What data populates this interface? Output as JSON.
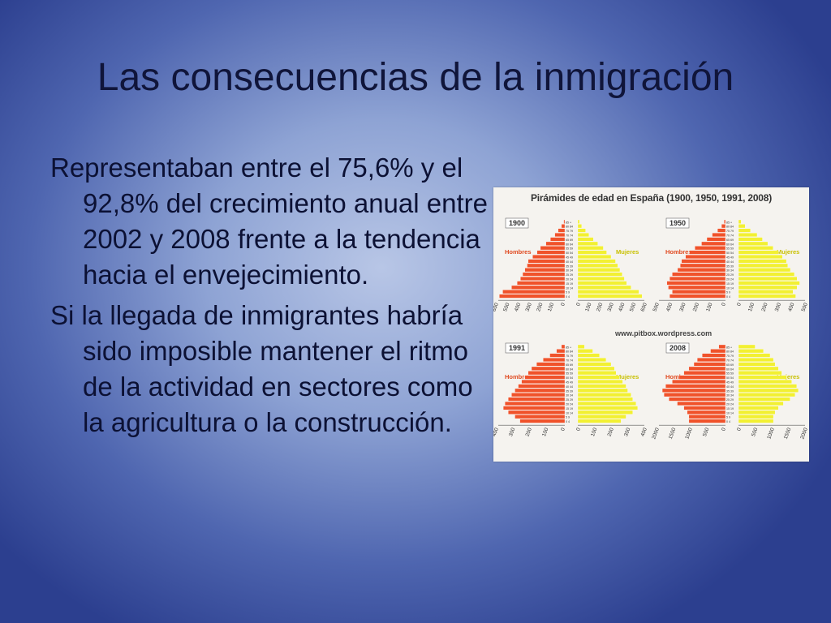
{
  "slide": {
    "title": "Las consecuencias de la inmigración",
    "paragraphs": [
      "Representaban entre el 75,6% y el 92,8% del crecimiento anual entre 2002 y 2008 frente a la tendencia hacia el envejecimiento.",
      "Si la llegada de inmigrantes habría sido imposible mantener el ritmo de la actividad en sectores como la agricultura o la construcción."
    ]
  },
  "figure": {
    "title": "Pirámides de edad en España (1900, 1950, 1991, 2008)",
    "source": "www.pitbox.wordpress.com",
    "colors": {
      "men": "#f0522a",
      "women": "#f2f032"
    },
    "age_labels": [
      "85 +",
      "80 84",
      "75 79",
      "70 74",
      "65 69",
      "60 64",
      "55 59",
      "50 54",
      "45 49",
      "40 44",
      "35 39",
      "30 34",
      "25 29",
      "20 24",
      "15 19",
      "10 14",
      "5 9",
      "0 4"
    ],
    "pyramids": [
      {
        "year": "1900",
        "men_label": "Hombres",
        "women_label": "Mujeres",
        "axis_left": [
          "600",
          "500",
          "400",
          "300",
          "200",
          "100",
          "0"
        ],
        "axis_right": [
          "0",
          "100",
          "200",
          "300",
          "400",
          "500",
          "600"
        ]
      },
      {
        "year": "1950",
        "men_label": "Hombres",
        "women_label": "Mujeres",
        "axis_left": [
          "500",
          "400",
          "300",
          "200",
          "100",
          "0"
        ],
        "axis_right": [
          "0",
          "100",
          "200",
          "300",
          "400",
          "500"
        ]
      },
      {
        "year": "1991",
        "men_label": "Hombres",
        "women_label": "Mujeres",
        "axis_left": [
          "400",
          "300",
          "200",
          "100",
          "0"
        ],
        "axis_right": [
          "0",
          "100",
          "200",
          "300",
          "400"
        ]
      },
      {
        "year": "2008",
        "men_label": "Hombres",
        "women_label": "Mujeres",
        "axis_left": [
          "2000",
          "1500",
          "1000",
          "500",
          "0"
        ],
        "axis_right": [
          "0",
          "500",
          "1000",
          "1500",
          "2000"
        ]
      }
    ],
    "chart_data": [
      {
        "type": "bar",
        "title": "1900",
        "categories": [
          "85 +",
          "80 84",
          "75 79",
          "70 74",
          "65 69",
          "60 64",
          "55 59",
          "50 54",
          "45 49",
          "40 44",
          "35 39",
          "30 34",
          "25 29",
          "20 24",
          "15 19",
          "10 14",
          "5 9",
          "0 4"
        ],
        "series": [
          {
            "name": "Hombres",
            "values": [
              10,
              30,
              60,
              90,
              130,
              170,
              220,
              250,
              290,
              330,
              340,
              360,
              380,
              400,
              430,
              480,
              560,
              590
            ]
          },
          {
            "name": "Mujeres",
            "values": [
              15,
              35,
              70,
              100,
              140,
              180,
              230,
              260,
              300,
              340,
              360,
              380,
              400,
              420,
              440,
              480,
              550,
              580
            ]
          }
        ]
      },
      {
        "type": "bar",
        "title": "1950",
        "categories": [
          "85 +",
          "80 84",
          "75 79",
          "70 74",
          "65 69",
          "60 64",
          "55 59",
          "50 54",
          "45 49",
          "40 44",
          "35 39",
          "30 34",
          "25 29",
          "20 24",
          "15 19",
          "10 14",
          "5 9",
          "0 4"
        ],
        "series": [
          {
            "name": "Hombres",
            "values": [
              10,
              30,
              60,
              100,
              140,
              180,
              230,
              270,
              300,
              330,
              340,
              360,
              400,
              420,
              440,
              430,
              400,
              420
            ]
          },
          {
            "name": "Mujeres",
            "values": [
              20,
              50,
              90,
              140,
              180,
              220,
              260,
              300,
              330,
              360,
              370,
              390,
              420,
              440,
              460,
              440,
              410,
              430
            ]
          }
        ]
      },
      {
        "type": "bar",
        "title": "1991",
        "categories": [
          "85 +",
          "80 84",
          "75 79",
          "70 74",
          "65 69",
          "60 64",
          "55 59",
          "50 54",
          "45 49",
          "40 44",
          "35 39",
          "30 34",
          "25 29",
          "20 24",
          "15 19",
          "10 14",
          "5 9",
          "0 4"
        ],
        "series": [
          {
            "name": "Hombres",
            "values": [
              20,
              50,
              90,
              130,
              170,
              200,
              220,
              240,
              260,
              280,
              300,
              320,
              340,
              360,
              370,
              340,
              300,
              270
            ]
          },
          {
            "name": "Mujeres",
            "values": [
              40,
              90,
              130,
              170,
              200,
              220,
              230,
              250,
              270,
              290,
              300,
              320,
              330,
              350,
              360,
              330,
              290,
              260
            ]
          }
        ]
      },
      {
        "type": "bar",
        "title": "2008",
        "categories": [
          "85 +",
          "80 84",
          "75 79",
          "70 74",
          "65 69",
          "60 64",
          "55 59",
          "50 54",
          "45 49",
          "40 44",
          "35 39",
          "30 34",
          "25 29",
          "20 24",
          "15 19",
          "10 14",
          "5 9",
          "0 4"
        ],
        "series": [
          {
            "name": "Hombres",
            "values": [
              200,
              450,
              700,
              850,
              950,
              1100,
              1250,
              1400,
              1600,
              1800,
              1900,
              1850,
              1700,
              1450,
              1250,
              1150,
              1100,
              1100
            ]
          },
          {
            "name": "Mujeres",
            "values": [
              500,
              750,
              950,
              1050,
              1100,
              1200,
              1300,
              1450,
              1600,
              1750,
              1800,
              1700,
              1550,
              1350,
              1200,
              1100,
              1050,
              1050
            ]
          }
        ]
      }
    ]
  }
}
